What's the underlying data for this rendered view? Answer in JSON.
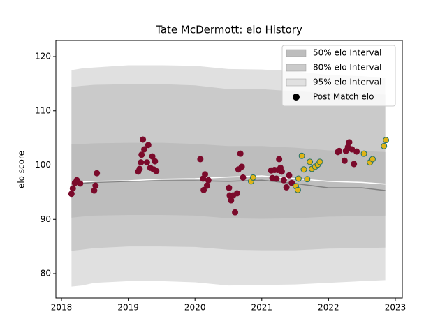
{
  "chart_data": {
    "type": "band-line-scatter",
    "title": "Tate McDermott: elo History",
    "ylabel": "elo score",
    "xlim": [
      2017.916,
      2023.105
    ],
    "ylim": [
      75.5,
      122.96
    ],
    "xticks": [
      2018,
      2019,
      2020,
      2021,
      2022,
      2023
    ],
    "yticks": [
      80,
      90,
      100,
      110,
      120
    ],
    "legend": "upper right",
    "bands": [
      {
        "name": "95% elo Interval",
        "color": "#e0e0e0",
        "x": [
          2018.15,
          2018.3,
          2018.5,
          2019.0,
          2019.5,
          2020.0,
          2020.5,
          2021.0,
          2021.5,
          2022.0,
          2022.5,
          2022.85
        ],
        "upper": [
          117.5,
          117.8,
          118,
          118.4,
          118.4,
          118.3,
          117.7,
          117.6,
          117.3,
          116.6,
          116.4,
          116.0
        ],
        "lower": [
          77.6,
          77.8,
          78.3,
          78.6,
          78.6,
          78.4,
          77.8,
          77.9,
          78.0,
          78.3,
          78.6,
          78.8
        ]
      },
      {
        "name": "80% elo Interval",
        "color": "#cacaca",
        "x": [
          2018.15,
          2018.3,
          2018.5,
          2019.0,
          2019.5,
          2020.0,
          2020.5,
          2021.0,
          2021.5,
          2022.0,
          2022.5,
          2022.85
        ],
        "upper": [
          114.4,
          114.6,
          114.8,
          114.9,
          114.9,
          114.7,
          114.0,
          114.0,
          113.6,
          113.3,
          113.2,
          113.0
        ],
        "lower": [
          84.2,
          84.4,
          84.7,
          85.0,
          85.0,
          84.9,
          84.4,
          84.3,
          84.3,
          84.6,
          84.7,
          84.8
        ]
      },
      {
        "name": "50% elo Interval",
        "color": "#bdbdbd",
        "x": [
          2018.15,
          2018.3,
          2018.5,
          2019.0,
          2019.5,
          2020.0,
          2020.5,
          2021.0,
          2021.5,
          2022.0,
          2022.5,
          2022.85
        ],
        "upper": [
          103.8,
          103.9,
          104.0,
          104.1,
          104.1,
          103.9,
          103.5,
          103.5,
          103.2,
          102.7,
          102.6,
          102.4
        ],
        "lower": [
          90.3,
          90.5,
          90.7,
          90.8,
          90.8,
          90.7,
          90.2,
          90.1,
          90.2,
          90.5,
          90.6,
          90.7
        ]
      }
    ],
    "legend_order": [
      2,
      1,
      0
    ],
    "lines": [
      {
        "color": "#808080",
        "x": [
          2018.15,
          2018.3,
          2018.5,
          2019.0,
          2019.5,
          2020.0,
          2020.5,
          2021.0,
          2021.5,
          2022.0,
          2022.5,
          2022.85
        ],
        "values": [
          96.5,
          96.6,
          96.8,
          97.0,
          97.1,
          97.1,
          97.0,
          97.2,
          96.6,
          95.8,
          95.8,
          95.3
        ]
      },
      {
        "color": "#ffffff",
        "x": [
          2018.15,
          2018.3,
          2018.5,
          2019.0,
          2019.5,
          2020.0,
          2020.5,
          2021.0,
          2021.5,
          2022.0,
          2022.5,
          2022.85
        ],
        "values": [
          96.8,
          96.9,
          97.0,
          97.1,
          97.4,
          97.5,
          97.8,
          98.0,
          97.5,
          97.0,
          96.8,
          96.5
        ]
      }
    ],
    "scatter": {
      "name": "Post Match elo",
      "legend_color": "#000000",
      "groups": [
        {
          "color": "#7b0a2b",
          "edgecolor": "#7b0a2b",
          "x": [
            2018.15,
            2018.17,
            2018.2,
            2018.23,
            2018.28,
            2018.49,
            2018.51,
            2018.53,
            2019.15,
            2019.17,
            2019.19,
            2019.2,
            2019.22,
            2019.24,
            2019.28,
            2019.3,
            2019.33,
            2019.36,
            2019.38,
            2019.4,
            2019.42,
            2020.08,
            2020.12,
            2020.13,
            2020.15,
            2020.18,
            2020.2,
            2020.51,
            2020.52,
            2020.54,
            2020.57,
            2020.6,
            2020.63,
            2020.65,
            2020.68,
            2020.7,
            2020.72,
            2021.14,
            2021.16,
            2021.19,
            2021.22,
            2021.24,
            2021.26,
            2021.28,
            2021.3,
            2021.33,
            2021.37,
            2021.41,
            2021.45,
            2022.14,
            2022.16,
            2022.24,
            2022.26,
            2022.29,
            2022.31,
            2022.35,
            2022.38,
            2022.42
          ],
          "values": [
            94.7,
            95.7,
            96.7,
            97.2,
            96.6,
            95.3,
            96.2,
            98.5,
            98.8,
            99.3,
            100.5,
            101.9,
            104.7,
            102.9,
            100.5,
            103.7,
            99.5,
            101.6,
            99.2,
            100.7,
            98.9,
            101.1,
            97.5,
            95.4,
            98.3,
            96.2,
            97.2,
            95.8,
            94.4,
            93.5,
            94.4,
            91.3,
            94.8,
            99.2,
            102.1,
            99.7,
            97.7,
            99.0,
            97.6,
            99.1,
            97.5,
            99.1,
            101.1,
            99.5,
            98.8,
            97.2,
            95.9,
            98.1,
            96.7,
            102.4,
            102.6,
            100.8,
            102.6,
            103.3,
            104.2,
            102.9,
            100.2,
            102.5
          ]
        },
        {
          "color": "#e0b416",
          "edgecolor": "#1f6f6a",
          "x": [
            2020.84,
            2020.87,
            2021.51,
            2021.54,
            2021.55,
            2021.6,
            2021.63,
            2021.68,
            2021.72,
            2021.75,
            2021.8,
            2021.84,
            2021.87,
            2022.53,
            2022.62,
            2022.66,
            2022.83,
            2022.86
          ],
          "values": [
            97.0,
            97.7,
            96.1,
            95.4,
            97.5,
            101.7,
            99.2,
            97.4,
            100.6,
            99.3,
            99.7,
            100.1,
            100.6,
            102.1,
            100.5,
            101.1,
            103.5,
            104.6
          ]
        }
      ]
    }
  }
}
